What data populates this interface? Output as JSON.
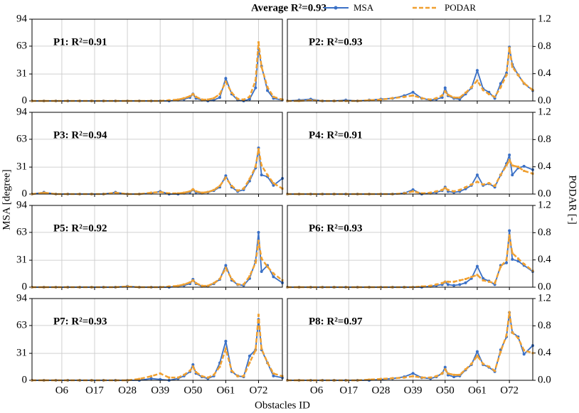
{
  "chart_data": {
    "type": "line",
    "title": "Average R²=0.93",
    "x_label": "Obstacles ID",
    "y_label": "MSA [degree]",
    "y2_label": "PODAR [-]",
    "x": [
      -4,
      0,
      4,
      8,
      12,
      16,
      20,
      24,
      28,
      32,
      36,
      39,
      42,
      45,
      47,
      49,
      50,
      51,
      53,
      55,
      57,
      59,
      61,
      63,
      65,
      67,
      69,
      71,
      72,
      73,
      75,
      77,
      80
    ],
    "xlim": [
      -4,
      80
    ],
    "xticks": [
      {
        "value": 6,
        "label": "O6"
      },
      {
        "value": 17,
        "label": "O17"
      },
      {
        "value": 28,
        "label": "O28"
      },
      {
        "value": 39,
        "label": "O39"
      },
      {
        "value": 50,
        "label": "O50"
      },
      {
        "value": 61,
        "label": "O61"
      },
      {
        "value": 72,
        "label": "O72"
      }
    ],
    "ylim": [
      0,
      94
    ],
    "yticks": [
      0,
      31,
      63,
      94
    ],
    "y2lim": [
      0,
      1.2
    ],
    "y2ticks": [
      {
        "value": 0,
        "label": "0.0"
      },
      {
        "value": 0.4,
        "label": "0.4"
      },
      {
        "value": 0.8,
        "label": "0.8"
      },
      {
        "value": 1.2,
        "label": "1.2"
      }
    ],
    "grid": true,
    "panels": [
      {
        "title": "P1: R²=0.91",
        "series": [
          {
            "name": "MSA",
            "color": "#3a70c6",
            "values": [
              0,
              0,
              0,
              0,
              0,
              0,
              0,
              0,
              0,
              0,
              0,
              0,
              0,
              1,
              2,
              4,
              8,
              3,
              1,
              0,
              1,
              4,
              26,
              8,
              1,
              0,
              2,
              15,
              60,
              40,
              12,
              3,
              1
            ]
          },
          {
            "name": "PODAR",
            "color": "#f0a030",
            "axis": "y2",
            "values": [
              0,
              0,
              0,
              0,
              0,
              0,
              0,
              0,
              0,
              0,
              0,
              0,
              0.01,
              0.02,
              0.04,
              0.07,
              0.1,
              0.06,
              0.02,
              0.02,
              0.04,
              0.1,
              0.28,
              0.12,
              0.03,
              0.02,
              0.06,
              0.3,
              0.86,
              0.5,
              0.2,
              0.06,
              0.02
            ]
          }
        ]
      },
      {
        "title": "P2: R²=0.93",
        "series": [
          {
            "name": "MSA",
            "color": "#3a70c6",
            "values": [
              0,
              1,
              2,
              0,
              0,
              1,
              0,
              1,
              2,
              3,
              6,
              10,
              3,
              1,
              2,
              4,
              15,
              6,
              3,
              2,
              8,
              15,
              35,
              14,
              10,
              3,
              20,
              32,
              62,
              42,
              30,
              20,
              12
            ]
          },
          {
            "name": "PODAR",
            "color": "#f0a030",
            "axis": "y2",
            "values": [
              0,
              0,
              0.01,
              0,
              0,
              0,
              0,
              0.01,
              0.02,
              0.04,
              0.06,
              0.08,
              0.04,
              0.02,
              0.04,
              0.08,
              0.14,
              0.09,
              0.05,
              0.05,
              0.12,
              0.2,
              0.3,
              0.16,
              0.1,
              0.06,
              0.2,
              0.38,
              0.78,
              0.5,
              0.38,
              0.26,
              0.16
            ]
          }
        ]
      },
      {
        "title": "P3: R²=0.94",
        "series": [
          {
            "name": "MSA",
            "color": "#3a70c6",
            "values": [
              0,
              2,
              0,
              0,
              0,
              0,
              0,
              2,
              0,
              0,
              1,
              3,
              0,
              0,
              1,
              2,
              5,
              2,
              1,
              2,
              4,
              8,
              21,
              8,
              3,
              5,
              15,
              30,
              53,
              22,
              20,
              10,
              18
            ]
          },
          {
            "name": "PODAR",
            "color": "#f0a030",
            "axis": "y2",
            "values": [
              0,
              0.02,
              0,
              0,
              0,
              0,
              0,
              0.02,
              0,
              0,
              0.02,
              0.03,
              0.01,
              0.01,
              0.02,
              0.04,
              0.07,
              0.04,
              0.02,
              0.03,
              0.06,
              0.12,
              0.24,
              0.12,
              0.05,
              0.08,
              0.22,
              0.4,
              0.66,
              0.42,
              0.28,
              0.16,
              0.08
            ]
          }
        ]
      },
      {
        "title": "P4: R²=0.91",
        "series": [
          {
            "name": "MSA",
            "color": "#3a70c6",
            "values": [
              0,
              0,
              0,
              0,
              0,
              0,
              0,
              0,
              0,
              0,
              1,
              5,
              0,
              1,
              2,
              4,
              8,
              3,
              2,
              3,
              6,
              10,
              22,
              10,
              12,
              8,
              22,
              35,
              45,
              22,
              30,
              32,
              28
            ]
          },
          {
            "name": "PODAR",
            "color": "#f0a030",
            "axis": "y2",
            "values": [
              0,
              0,
              0,
              0,
              0,
              0,
              0,
              0,
              0,
              0,
              0.01,
              0.04,
              0.01,
              0.02,
              0.04,
              0.06,
              0.09,
              0.06,
              0.04,
              0.06,
              0.1,
              0.14,
              0.18,
              0.14,
              0.16,
              0.12,
              0.28,
              0.42,
              0.5,
              0.42,
              0.4,
              0.34,
              0.3
            ]
          }
        ]
      },
      {
        "title": "P5: R²=0.92",
        "series": [
          {
            "name": "MSA",
            "color": "#3a70c6",
            "values": [
              0,
              0,
              0,
              0,
              0,
              0,
              0,
              0,
              1,
              0,
              0,
              0,
              0,
              1,
              2,
              4,
              9,
              4,
              1,
              1,
              4,
              9,
              25,
              8,
              3,
              2,
              10,
              30,
              63,
              18,
              25,
              12,
              5
            ]
          },
          {
            "name": "PODAR",
            "color": "#f0a030",
            "axis": "y2",
            "values": [
              0,
              0,
              0,
              0,
              0,
              0,
              0,
              0,
              0.01,
              0,
              0,
              0,
              0.01,
              0.02,
              0.04,
              0.07,
              0.1,
              0.06,
              0.02,
              0.02,
              0.06,
              0.12,
              0.28,
              0.12,
              0.04,
              0.04,
              0.16,
              0.36,
              0.68,
              0.42,
              0.3,
              0.2,
              0.1
            ]
          }
        ]
      },
      {
        "title": "P6: R²=0.93",
        "series": [
          {
            "name": "MSA",
            "color": "#3a70c6",
            "values": [
              0,
              0,
              0,
              0,
              0,
              0,
              0,
              0,
              0,
              0,
              0,
              0,
              0,
              1,
              2,
              3,
              6,
              3,
              2,
              3,
              5,
              10,
              24,
              10,
              7,
              3,
              25,
              28,
              65,
              32,
              30,
              25,
              18
            ]
          },
          {
            "name": "PODAR",
            "color": "#f0a030",
            "axis": "y2",
            "values": [
              0,
              0,
              0,
              0,
              0,
              0,
              0,
              0,
              0,
              0,
              0,
              0,
              0.01,
              0.02,
              0.04,
              0.06,
              0.08,
              0.08,
              0.08,
              0.1,
              0.12,
              0.15,
              0.18,
              0.1,
              0.08,
              0.06,
              0.3,
              0.4,
              0.76,
              0.5,
              0.42,
              0.34,
              0.24
            ]
          }
        ]
      },
      {
        "title": "P7: R²=0.93",
        "series": [
          {
            "name": "MSA",
            "color": "#3a70c6",
            "values": [
              0,
              0,
              0,
              0,
              0,
              0,
              0,
              0,
              0,
              0,
              2,
              1,
              0,
              2,
              5,
              10,
              18,
              8,
              4,
              2,
              5,
              20,
              45,
              10,
              5,
              4,
              28,
              35,
              70,
              35,
              20,
              5,
              3
            ]
          },
          {
            "name": "PODAR",
            "color": "#f0a030",
            "axis": "y2",
            "values": [
              0,
              0,
              0,
              0,
              0,
              0,
              0,
              0,
              0,
              0.02,
              0.06,
              0.1,
              0.04,
              0.04,
              0.08,
              0.14,
              0.2,
              0.12,
              0.06,
              0.04,
              0.08,
              0.2,
              0.46,
              0.14,
              0.06,
              0.06,
              0.26,
              0.44,
              0.96,
              0.46,
              0.26,
              0.1,
              0.06
            ]
          }
        ]
      },
      {
        "title": "P8: R²=0.97",
        "series": [
          {
            "name": "MSA",
            "color": "#3a70c6",
            "values": [
              0,
              0,
              0,
              0,
              0,
              0,
              0,
              0,
              1,
              2,
              4,
              8,
              3,
              2,
              4,
              8,
              15,
              6,
              4,
              5,
              12,
              18,
              33,
              18,
              15,
              10,
              35,
              50,
              78,
              55,
              50,
              30,
              40
            ]
          },
          {
            "name": "PODAR",
            "color": "#f0a030",
            "axis": "y2",
            "values": [
              0,
              0,
              0,
              0,
              0,
              0,
              0,
              0.01,
              0.02,
              0.03,
              0.04,
              0.06,
              0.04,
              0.04,
              0.06,
              0.1,
              0.16,
              0.1,
              0.08,
              0.08,
              0.16,
              0.24,
              0.36,
              0.24,
              0.2,
              0.14,
              0.42,
              0.66,
              1.0,
              0.7,
              0.62,
              0.44,
              0.4
            ]
          }
        ]
      }
    ]
  }
}
